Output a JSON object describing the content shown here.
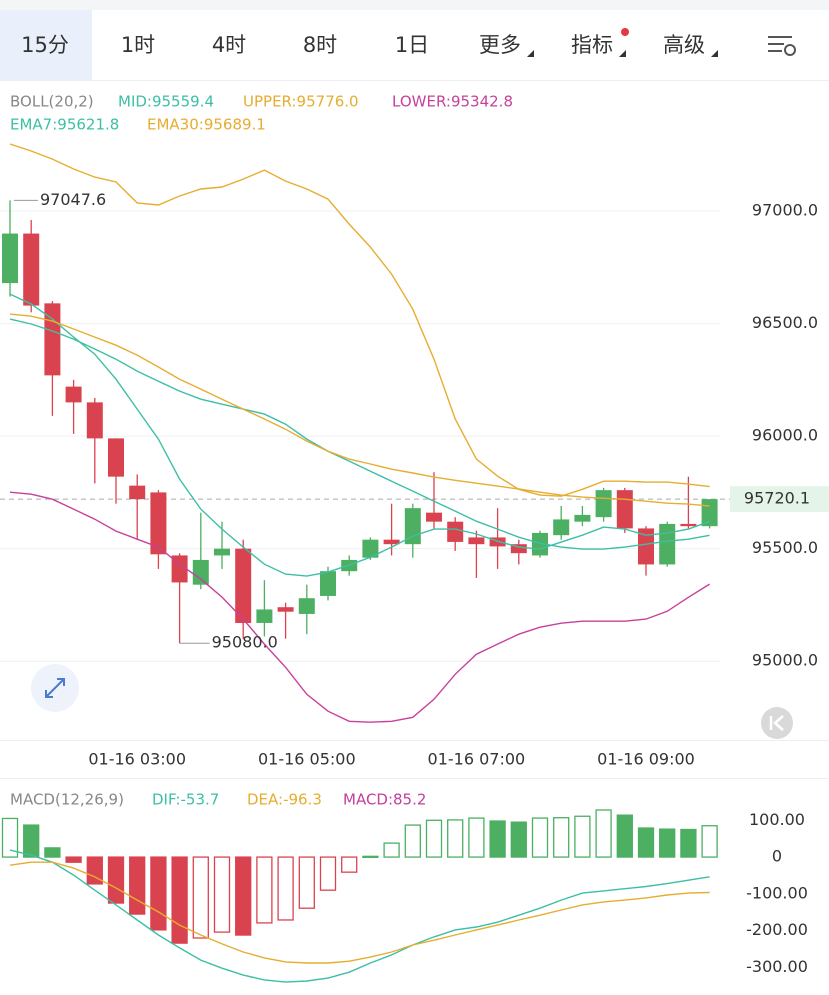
{
  "tabs": [
    "15分",
    "1时",
    "4时",
    "8时",
    "1日",
    "更多",
    "指标",
    "高级"
  ],
  "active_tab": 0,
  "chart_data": [
    {
      "type": "candlestick",
      "title": "BOLL(20,2)",
      "categories": [
        null,
        null,
        null,
        null,
        null,
        null,
        "01-16 03:00",
        null,
        null,
        null,
        null,
        null,
        null,
        null,
        "01-16 05:00",
        null,
        null,
        null,
        null,
        null,
        null,
        null,
        "01-16 07:00",
        null,
        null,
        null,
        null,
        null,
        null,
        null,
        "01-16 09:00",
        null,
        null,
        null
      ],
      "open": [
        96680,
        96900,
        96590,
        96220,
        96150,
        95990,
        95780,
        95750,
        95470,
        95340,
        95470,
        95500,
        95170,
        95240,
        95210,
        95290,
        95400,
        95460,
        95540,
        95520,
        95660,
        95620,
        95550,
        95550,
        95520,
        95470,
        95560,
        95620,
        95640,
        95760,
        95590,
        95430,
        95610,
        95600
      ],
      "high": [
        97047.6,
        96960,
        96600,
        96250,
        96170,
        95990,
        95830,
        95760,
        95480,
        95660,
        95620,
        95540,
        95360,
        95260,
        95340,
        95420,
        95470,
        95550,
        95700,
        95700,
        95840,
        95640,
        95580,
        95680,
        95540,
        95580,
        95690,
        95690,
        95770,
        95770,
        95600,
        95620,
        95820,
        95720.1
      ],
      "low": [
        96620,
        96550,
        96090,
        96010,
        95790,
        95700,
        95540,
        95410,
        95080,
        95320,
        95410,
        95100,
        95110,
        95100,
        95120,
        95270,
        95380,
        95450,
        95470,
        95460,
        95590,
        95490,
        95370,
        95410,
        95430,
        95460,
        95540,
        95600,
        95620,
        95570,
        95380,
        95420,
        95590,
        95590
      ],
      "close": [
        96900,
        96580,
        96270,
        96150,
        95990,
        95820,
        95720,
        95475,
        95350,
        95450,
        95500,
        95170,
        95230,
        95220,
        95280,
        95400,
        95450,
        95540,
        95520,
        95680,
        95620,
        95530,
        95520,
        95510,
        95480,
        95570,
        95630,
        95650,
        95760,
        95590,
        95430,
        95610,
        95600,
        95720.1
      ],
      "up_color": "#4caf62",
      "down_color": "#d9434f",
      "series": [
        {
          "name": "MID:95559.4",
          "color": "#3cbfa6",
          "values": [
            96520,
            96498,
            96467,
            96431,
            96387,
            96342,
            96289,
            96244,
            96200,
            96164,
            96142,
            96120,
            96098,
            96053,
            95987,
            95933,
            95889,
            95844,
            95800,
            95756,
            95711,
            95667,
            95622,
            95587,
            95551,
            95524,
            95507,
            95498,
            95498,
            95507,
            95520,
            95533,
            95542,
            95559.4
          ]
        },
        {
          "name": "UPPER:95776.0",
          "color": "#e6ad30",
          "values": [
            97298,
            97267,
            97231,
            97187,
            97151,
            97129,
            97036,
            97027,
            97067,
            97098,
            97107,
            97142,
            97182,
            97133,
            97098,
            97053,
            96942,
            96840,
            96720,
            96564,
            96342,
            96076,
            95898,
            95822,
            95764,
            95738,
            95733,
            95764,
            95800,
            95800,
            95796,
            95796,
            95787,
            95776
          ]
        },
        {
          "name": "LOWER:95342.8",
          "color": "#c8409a",
          "values": [
            95751,
            95742,
            95720,
            95676,
            95631,
            95578,
            95542,
            95507,
            95431,
            95365,
            95285,
            95187,
            95076,
            94973,
            94853,
            94778,
            94733,
            94729,
            94733,
            94751,
            94831,
            94942,
            95031,
            95076,
            95120,
            95151,
            95169,
            95178,
            95178,
            95178,
            95187,
            95222,
            95284,
            95342.8
          ]
        },
        {
          "name": "EMA7:95621.8",
          "color": "#3cbfa6",
          "values": [
            96631,
            96587,
            96520,
            96440,
            96364,
            96253,
            96120,
            95987,
            95809,
            95676,
            95587,
            95507,
            95431,
            95387,
            95378,
            95396,
            95427,
            95462,
            95507,
            95556,
            95587,
            95587,
            95565,
            95533,
            95507,
            95498,
            95529,
            95560,
            95596,
            95587,
            95560,
            95569,
            95587,
            95621.8
          ]
        },
        {
          "name": "EMA30:95689.1",
          "color": "#e6ad30",
          "values": [
            96542,
            96533,
            96511,
            96476,
            96440,
            96404,
            96360,
            96307,
            96253,
            96209,
            96164,
            96120,
            96076,
            96031,
            95978,
            95933,
            95898,
            95876,
            95853,
            95836,
            95818,
            95804,
            95791,
            95778,
            95765,
            95751,
            95738,
            95729,
            95724,
            95720,
            95711,
            95702,
            95698,
            95689.1
          ]
        }
      ],
      "ylim": [
        94650,
        97560
      ],
      "yticks": [
        {
          "value": 95000,
          "label": "95000.0"
        },
        {
          "value": 95500,
          "label": "95500.0"
        },
        {
          "value": 96000,
          "label": "96000.0"
        },
        {
          "value": 96500,
          "label": "96500.0"
        },
        {
          "value": 97000,
          "label": "97000.0"
        }
      ],
      "grid": true,
      "last_price": 95720.1,
      "high_label": 97047.6,
      "low_label": {
        "value": 95080,
        "label": "95080.0"
      }
    },
    {
      "type": "macd",
      "title": "MACD(12,26,9)",
      "series": [
        {
          "name": "DIF:-53.7",
          "color": "#3cbfa6",
          "values": [
            19,
            5,
            -14,
            -49,
            -90,
            -130,
            -171,
            -212,
            -247,
            -280,
            -302,
            -321,
            -334,
            -340,
            -337,
            -329,
            -313,
            -288,
            -266,
            -239,
            -217,
            -198,
            -190,
            -177,
            -158,
            -139,
            -117,
            -98,
            -92,
            -86,
            -80,
            -72,
            -63,
            -53.7
          ]
        },
        {
          "name": "DEA:-96.3",
          "color": "#e6ad30",
          "values": [
            -22,
            -14,
            -14,
            -30,
            -54,
            -84,
            -117,
            -149,
            -185,
            -212,
            -236,
            -258,
            -274,
            -285,
            -288,
            -288,
            -283,
            -272,
            -258,
            -239,
            -226,
            -212,
            -198,
            -185,
            -171,
            -158,
            -144,
            -130,
            -122,
            -117,
            -111,
            -103,
            -98,
            -96.3
          ]
        }
      ],
      "histogram": {
        "name": "MACD:85.2",
        "color": "#c23f9e",
        "up_color": "#4caf62",
        "down_color": "#d9434f",
        "values": [
          105,
          87,
          25,
          -14,
          -73,
          -125,
          -155,
          -198,
          -234,
          -220,
          -204,
          -212,
          -179,
          -171,
          -139,
          -90,
          -41,
          2,
          38,
          87,
          100,
          101,
          106,
          98,
          95,
          106,
          107,
          111,
          128,
          114,
          79,
          76,
          75,
          85.2
        ]
      },
      "ylim": [
        -375,
        215
      ],
      "yticks": [
        {
          "value": 100,
          "label": "100.00"
        },
        0,
        {
          "value": -100,
          "label": "-100.00"
        },
        {
          "value": -200,
          "label": "-200.00"
        },
        {
          "value": -300,
          "label": "-300.00"
        }
      ]
    }
  ]
}
